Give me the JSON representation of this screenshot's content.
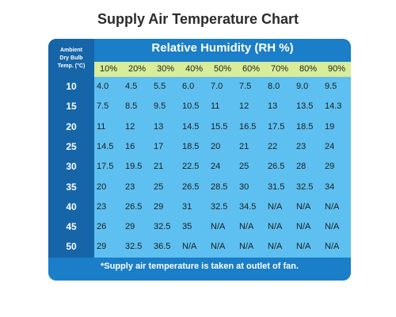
{
  "title": "Supply Air Temperature Chart",
  "footnote": "*Supply air temperature is taken at outlet of fan.",
  "colors": {
    "card_blue": "#1a7ec8",
    "row_head_blue": "#1565a8",
    "percent_band": "#d8ec9a",
    "cell_light": "#5ec0f0"
  },
  "chart_data": {
    "type": "table",
    "title": "Supply Air Temperature Chart",
    "row_header_label": [
      "Ambient",
      "Dry  Bulb",
      "Temp. (°C)"
    ],
    "column_group_label": "Relative Humidity (RH %)",
    "columns": [
      "10%",
      "20%",
      "30%",
      "40%",
      "50%",
      "60%",
      "70%",
      "80%",
      "90%"
    ],
    "rows": [
      {
        "ambient": "10",
        "values": [
          "4.0",
          "4.5",
          "5.5",
          "6.0",
          "7.0",
          "7.5",
          "8.0",
          "9.0",
          "9.5"
        ]
      },
      {
        "ambient": "15",
        "values": [
          "7.5",
          "8.5",
          "9.5",
          "10.5",
          "11",
          "12",
          "13",
          "13.5",
          "14.3"
        ]
      },
      {
        "ambient": "20",
        "values": [
          "11",
          "12",
          "13",
          "14.5",
          "15.5",
          "16.5",
          "17.5",
          "18.5",
          "19"
        ]
      },
      {
        "ambient": "25",
        "values": [
          "14.5",
          "16",
          "17",
          "18.5",
          "20",
          "21",
          "22",
          "23",
          "24"
        ]
      },
      {
        "ambient": "30",
        "values": [
          "17.5",
          "19.5",
          "21",
          "22.5",
          "24",
          "25",
          "26.5",
          "28",
          "29"
        ]
      },
      {
        "ambient": "35",
        "values": [
          "20",
          "23",
          "25",
          "26.5",
          "28.5",
          "30",
          "31.5",
          "32.5",
          "34"
        ]
      },
      {
        "ambient": "40",
        "values": [
          "23",
          "26.5",
          "29",
          "31",
          "32.5",
          "34.5",
          "N/A",
          "N/A",
          "N/A"
        ]
      },
      {
        "ambient": "45",
        "values": [
          "26",
          "29",
          "32.5",
          "35",
          "N/A",
          "N/A",
          "N/A",
          "N/A",
          "N/A"
        ]
      },
      {
        "ambient": "50",
        "values": [
          "29",
          "32.5",
          "36.5",
          "N/A",
          "N/A",
          "N/A",
          "N/A",
          "N/A",
          "N/A"
        ]
      }
    ]
  }
}
